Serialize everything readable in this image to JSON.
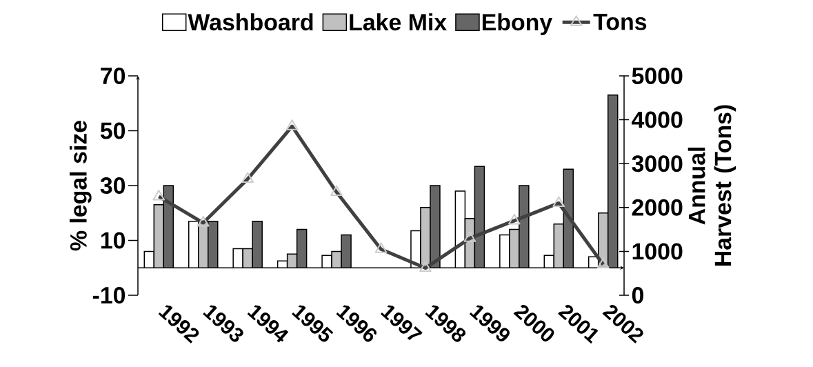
{
  "chart_data": {
    "type": "bar",
    "categories": [
      "1992",
      "1993",
      "1994",
      "1995",
      "1996",
      "1997",
      "1998",
      "1999",
      "2000",
      "2001",
      "2002"
    ],
    "series": [
      {
        "name": "Washboard",
        "color": "#ffffff",
        "values": [
          6,
          17,
          7,
          2.5,
          4.5,
          null,
          13.5,
          28,
          12,
          4.5,
          4
        ]
      },
      {
        "name": "Lake Mix",
        "color": "#c0c0c0",
        "values": [
          23,
          17,
          7,
          5,
          6,
          null,
          22,
          18,
          14,
          16,
          20
        ]
      },
      {
        "name": "Ebony",
        "color": "#666666",
        "values": [
          30,
          17,
          17,
          14,
          12,
          null,
          30,
          37,
          30,
          36,
          63
        ]
      },
      {
        "name": "Tons",
        "type": "line",
        "axis": "y2",
        "color": "#404040",
        "marker": "triangle",
        "values": [
          2250,
          1650,
          2650,
          3850,
          2350,
          1050,
          620,
          1300,
          1700,
          2100,
          700
        ]
      }
    ],
    "ylabel": "% legal size",
    "y2label": "Annual Harvest (Tons)",
    "ylim": [
      -10,
      70
    ],
    "yticks": [
      -10,
      10,
      30,
      50,
      70
    ],
    "y2lim": [
      0,
      5000
    ],
    "y2ticks": [
      0,
      1000,
      2000,
      3000,
      4000,
      5000
    ],
    "legend": "top"
  }
}
